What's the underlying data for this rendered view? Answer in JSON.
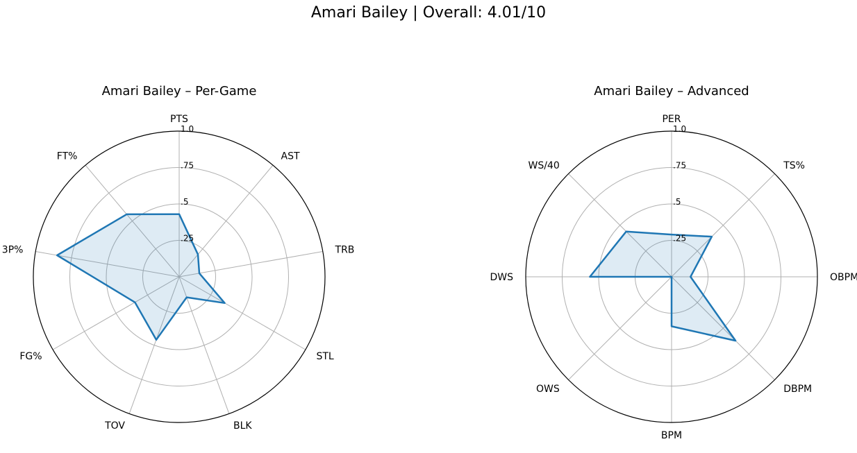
{
  "page": {
    "suptitle": "Amari Bailey | Overall: 4.01/10"
  },
  "chart_data": [
    {
      "type": "radar",
      "title": "Amari Bailey – Per-Game",
      "categories": [
        "PTS",
        "AST",
        "TRB",
        "STL",
        "BLK",
        "TOV",
        "FG%",
        "3P%",
        "FT%"
      ],
      "values": [
        0.43,
        0.2,
        0.14,
        0.36,
        0.15,
        0.46,
        0.35,
        0.85,
        0.56
      ],
      "rlim": [
        0,
        1
      ],
      "rticks": [
        0.25,
        0.5,
        0.75,
        1.0
      ],
      "rtick_labels": [
        ".25",
        ".5",
        ".75",
        "1.0"
      ],
      "grid": true,
      "color": "#1f77b4"
    },
    {
      "type": "radar",
      "title": "Amari Bailey – Advanced",
      "categories": [
        "PER",
        "TS%",
        "OBPM",
        "DBPM",
        "BPM",
        "OWS",
        "DWS",
        "WS/40"
      ],
      "values": [
        0.29,
        0.39,
        0.13,
        0.62,
        0.34,
        0.0,
        0.56,
        0.44
      ],
      "rlim": [
        0,
        1
      ],
      "rticks": [
        0.25,
        0.5,
        0.75,
        1.0
      ],
      "rtick_labels": [
        ".25",
        ".5",
        ".75",
        "1.0"
      ],
      "grid": true,
      "color": "#1f77b4"
    }
  ]
}
